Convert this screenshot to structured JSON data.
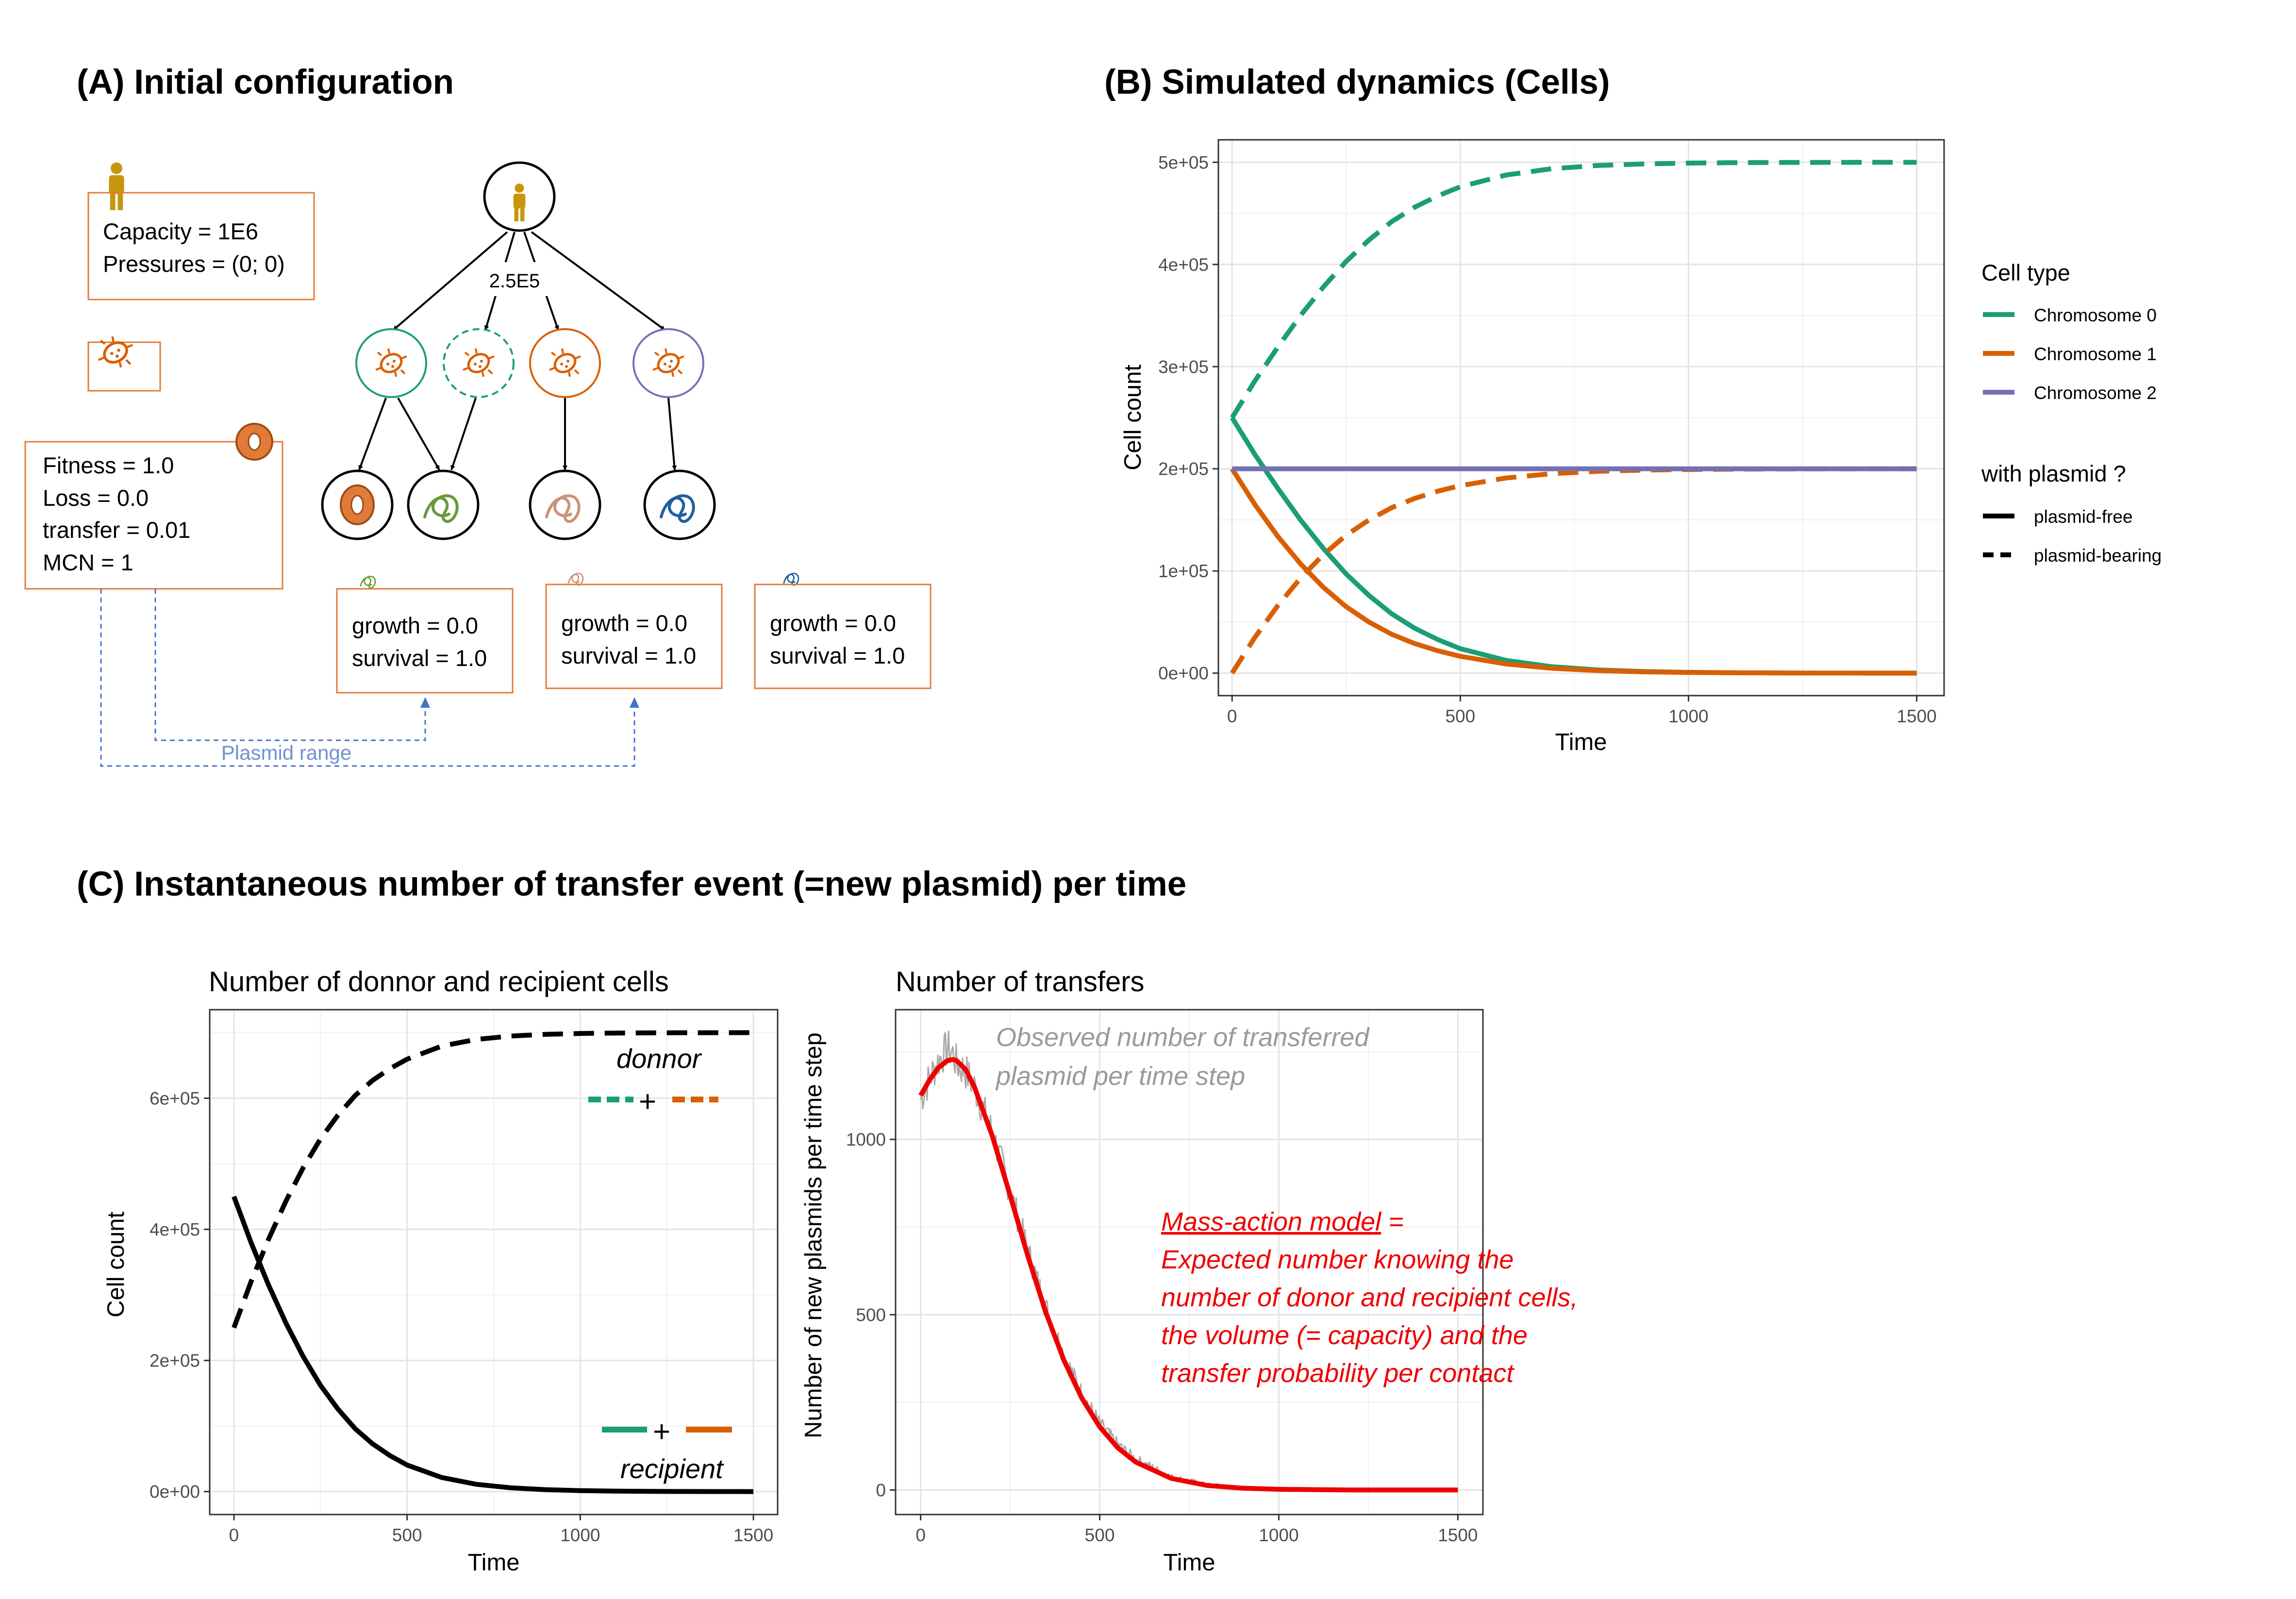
{
  "panelA": {
    "title": "(A) Initial configuration",
    "host_box": {
      "capacity": "Capacity = 1E6",
      "pressures": "Pressures = (0; 0)"
    },
    "plasmid_box": {
      "fitness": "Fitness = 1.0",
      "loss": "Loss = 0.0",
      "transfer": "transfer = 0.01",
      "mcn": "MCN = 1"
    },
    "edge_label": "2.5E5",
    "chrom_boxes": [
      {
        "growth": "growth = 0.0",
        "survival": "survival = 1.0"
      },
      {
        "growth": "growth = 0.0",
        "survival": "survival = 1.0"
      },
      {
        "growth": "growth = 0.0",
        "survival": "survival = 1.0"
      }
    ],
    "plasmid_range": "Plasmid range",
    "colors": {
      "host": "#c8960c",
      "box": "#e07b39",
      "cell_orange": "#d95f02",
      "teal": "#1b9e77",
      "purple": "#7570b3",
      "green_chrom": "#6a9a3a",
      "tan_chrom": "#c8947a",
      "blue_chrom": "#1f5fa0",
      "range": "#4472c4"
    },
    "icons": [
      "person-icon",
      "bacterium-icon",
      "plasmid-ring-icon",
      "chromosome-icon"
    ]
  },
  "panelB": {
    "title": "(B) Simulated dynamics (Cells)",
    "xlabel": "Time",
    "ylabel": "Cell count",
    "legend": {
      "type_title": "Cell type",
      "types": [
        {
          "label": "Chromosome 0",
          "color": "#1b9e77"
        },
        {
          "label": "Chromosome 1",
          "color": "#d95f02"
        },
        {
          "label": "Chromosome 2",
          "color": "#7570b3"
        }
      ],
      "plasmid_title": "with plasmid ?",
      "plasmid": [
        {
          "label": "plasmid-free",
          "style": "solid"
        },
        {
          "label": "plasmid-bearing",
          "style": "dashed"
        }
      ]
    }
  },
  "panelC": {
    "title": "(C) Instantaneous number of transfer event (=new plasmid) per time",
    "left": {
      "title": "Number of donnor and recipient cells",
      "xlabel": "Time",
      "ylabel": "Cell count",
      "donor_label": "donnor",
      "recipient_label": "recipient",
      "plus": "+"
    },
    "right": {
      "title": "Number of transfers",
      "xlabel": "Time",
      "ylabel": "Number of new plasmids per time step",
      "observed_note": [
        "Observed number of transferred",
        "plasmid per time step"
      ],
      "model_note_title": "Mass-action model",
      "model_note_suffix": " =",
      "model_note": [
        "Expected number knowing the",
        "number of donor and recipient cells,",
        "the volume (= capacity) and the",
        "transfer probability per contact"
      ]
    }
  },
  "chart_data": [
    {
      "type": "line",
      "title": "",
      "xlabel": "Time",
      "ylabel": "Cell count",
      "xlim": [
        -30,
        1560
      ],
      "ylim": [
        -22000,
        522000
      ],
      "xticks": [
        0,
        500,
        1000,
        1500
      ],
      "yticks": [
        0,
        100000,
        200000,
        300000,
        400000,
        500000
      ],
      "ytick_labels": [
        "0e+00",
        "1e+05",
        "2e+05",
        "3e+05",
        "4e+05",
        "5e+05"
      ],
      "legend_position": "right",
      "x": [
        0,
        50,
        100,
        150,
        200,
        250,
        300,
        350,
        400,
        450,
        500,
        600,
        700,
        800,
        900,
        1000,
        1100,
        1200,
        1300,
        1400,
        1500
      ],
      "series": [
        {
          "name": "Chromosome 0 plasmid-free",
          "color": "#1b9e77",
          "style": "solid",
          "values": [
            250000,
            214000,
            181000,
            150000,
            122000,
            97000,
            76000,
            58000,
            44000,
            33000,
            24000,
            12500,
            6300,
            3200,
            1600,
            800,
            400,
            200,
            100,
            50,
            25
          ]
        },
        {
          "name": "Chromosome 0 plasmid-bearing",
          "color": "#1b9e77",
          "style": "dashed",
          "values": [
            250000,
            286000,
            319000,
            350000,
            378000,
            403000,
            424000,
            442000,
            456000,
            467000,
            476000,
            487500,
            493700,
            496800,
            498400,
            499200,
            499600,
            499800,
            499900,
            499950,
            499975
          ]
        },
        {
          "name": "Chromosome 1 plasmid-free",
          "color": "#d95f02",
          "style": "solid",
          "values": [
            200000,
            165000,
            134000,
            107000,
            84000,
            65000,
            50000,
            38000,
            29000,
            22000,
            16500,
            9000,
            4800,
            2500,
            1300,
            680,
            350,
            180,
            90,
            45,
            20
          ]
        },
        {
          "name": "Chromosome 1 plasmid-bearing",
          "color": "#d95f02",
          "style": "dashed",
          "values": [
            0,
            35000,
            66000,
            93000,
            116000,
            135000,
            150000,
            162000,
            171000,
            178000,
            183500,
            191000,
            195200,
            197500,
            198700,
            199320,
            199650,
            199820,
            199910,
            199955,
            199980
          ]
        },
        {
          "name": "Chromosome 2 plasmid-free",
          "color": "#7570b3",
          "style": "solid",
          "values": [
            200000,
            200000,
            200000,
            200000,
            200000,
            200000,
            200000,
            200000,
            200000,
            200000,
            200000,
            200000,
            200000,
            200000,
            200000,
            200000,
            200000,
            200000,
            200000,
            200000,
            200000
          ]
        }
      ]
    },
    {
      "type": "line",
      "title": "Number of donnor and recipient cells",
      "xlabel": "Time",
      "ylabel": "Cell count",
      "xlim": [
        -70,
        1570
      ],
      "ylim": [
        -35000,
        735000
      ],
      "xticks": [
        0,
        500,
        1000,
        1500
      ],
      "yticks": [
        0,
        200000,
        400000,
        600000
      ],
      "ytick_labels": [
        "0e+00",
        "2e+05",
        "4e+05",
        "6e+05"
      ],
      "x": [
        0,
        50,
        100,
        150,
        200,
        250,
        300,
        350,
        400,
        450,
        500,
        600,
        700,
        800,
        900,
        1000,
        1100,
        1200,
        1300,
        1400,
        1500
      ],
      "series": [
        {
          "name": "donnor",
          "color": "#000000",
          "style": "dashed",
          "values": [
            250000,
            321000,
            385000,
            443000,
            494000,
            538000,
            574000,
            604000,
            627000,
            645000,
            659500,
            679500,
            689700,
            694800,
            697400,
            698700,
            699350,
            699680,
            699840,
            699920,
            699960
          ]
        },
        {
          "name": "recipient",
          "color": "#000000",
          "style": "solid",
          "values": [
            450000,
            379000,
            315000,
            257000,
            206000,
            162000,
            126000,
            96000,
            73000,
            55000,
            40500,
            21500,
            11100,
            5700,
            2900,
            1480,
            750,
            380,
            190,
            95,
            45
          ]
        }
      ]
    },
    {
      "type": "line",
      "title": "Number of transfers",
      "xlabel": "Time",
      "ylabel": "Number of new plasmids per time step",
      "xlim": [
        -70,
        1570
      ],
      "ylim": [
        -70,
        1370
      ],
      "xticks": [
        0,
        500,
        1000,
        1500
      ],
      "yticks": [
        0,
        500,
        1000
      ],
      "x": [
        0,
        25,
        50,
        75,
        90,
        100,
        125,
        150,
        200,
        250,
        300,
        350,
        400,
        450,
        500,
        550,
        600,
        700,
        800,
        900,
        1000,
        1100,
        1200,
        1300,
        1400,
        1500
      ],
      "series": [
        {
          "name": "Observed number of transferred plasmid per time step",
          "color": "#aaaaaa",
          "style": "solid",
          "values": [
            1115,
            1175,
            1225,
            1260,
            1245,
            1215,
            1195,
            1150,
            1020,
            850,
            680,
            520,
            385,
            275,
            190,
            130,
            88,
            37,
            15,
            6,
            2,
            1,
            0,
            0,
            0,
            0
          ]
        },
        {
          "name": "Mass-action model",
          "color": "#ee0000",
          "style": "solid",
          "values": [
            1125,
            1170,
            1205,
            1225,
            1228,
            1225,
            1200,
            1150,
            1010,
            840,
            665,
            505,
            370,
            262,
            180,
            121,
            80,
            33,
            13,
            5,
            2,
            1,
            0,
            0,
            0,
            0
          ]
        }
      ]
    }
  ]
}
